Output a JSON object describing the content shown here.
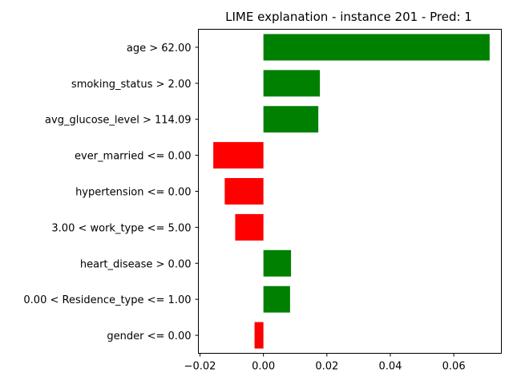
{
  "chart_data": {
    "type": "bar",
    "orientation": "horizontal",
    "title": "LIME explanation - instance 201 - Pred: 1",
    "xlabel": "",
    "ylabel": "",
    "xlim": [
      -0.0205,
      0.075
    ],
    "grid": false,
    "legend": "none",
    "xticks": [
      {
        "value": -0.02,
        "label": "−0.02"
      },
      {
        "value": 0.0,
        "label": "0.00"
      },
      {
        "value": 0.02,
        "label": "0.02"
      },
      {
        "value": 0.04,
        "label": "0.04"
      },
      {
        "value": 0.06,
        "label": "0.06"
      }
    ],
    "categories": [
      "age > 62.00",
      "smoking_status > 2.00",
      "avg_glucose_level > 114.09",
      "ever_married <= 0.00",
      "hypertension <= 0.00",
      "3.00 < work_type <= 5.00",
      "heart_disease > 0.00",
      "0.00 < Residence_type <= 1.00",
      "gender <= 0.00"
    ],
    "values": [
      0.0713,
      0.0178,
      0.0173,
      -0.0158,
      -0.0122,
      -0.0089,
      0.0087,
      0.0084,
      -0.0028
    ],
    "colors": {
      "positive": "#008000",
      "negative": "#ff0000",
      "axis": "#000000"
    }
  }
}
